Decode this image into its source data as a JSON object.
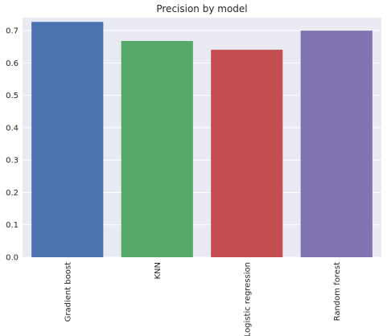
{
  "chart_data": {
    "type": "bar",
    "title": "Precision by model",
    "xlabel": "",
    "ylabel": "",
    "categories": [
      "Gradient boost",
      "KNN",
      "Logistic regression",
      "Random forest"
    ],
    "values": [
      0.727,
      0.668,
      0.641,
      0.7
    ],
    "colors": [
      "#4c72b0",
      "#55a868",
      "#c44e52",
      "#8172b2"
    ],
    "ylim": [
      0,
      0.74
    ],
    "yticks": [
      "0.0",
      "0.1",
      "0.2",
      "0.3",
      "0.4",
      "0.5",
      "0.6",
      "0.7"
    ],
    "grid": true,
    "background": "#eaeaf2",
    "legend": "none"
  }
}
